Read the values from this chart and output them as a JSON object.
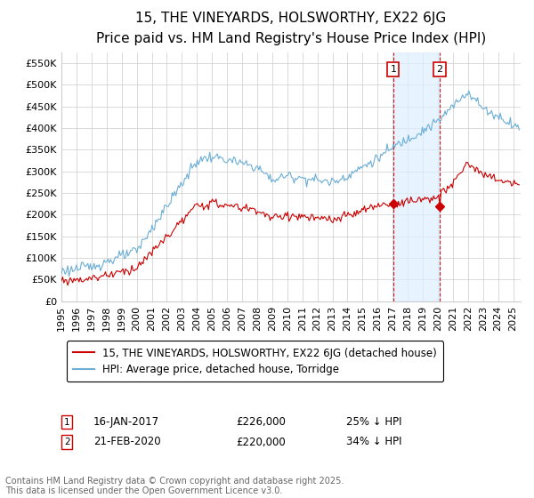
{
  "title": "15, THE VINEYARDS, HOLSWORTHY, EX22 6JG",
  "subtitle": "Price paid vs. HM Land Registry's House Price Index (HPI)",
  "ylim": [
    0,
    575000
  ],
  "yticks": [
    0,
    50000,
    100000,
    150000,
    200000,
    250000,
    300000,
    350000,
    400000,
    450000,
    500000,
    550000
  ],
  "xlim_start": 1995.0,
  "xlim_end": 2025.5,
  "hpi_color": "#6baed6",
  "price_color": "#cc0000",
  "vline_color": "#cc0000",
  "shade_color": "#ddeeff",
  "sale1_date": 2017.04,
  "sale1_price": 226000,
  "sale1_label": "16-JAN-2017",
  "sale1_pct": "25%",
  "sale2_date": 2020.13,
  "sale2_price": 220000,
  "sale2_label": "21-FEB-2020",
  "sale2_pct": "34%",
  "legend_label_price": "15, THE VINEYARDS, HOLSWORTHY, EX22 6JG (detached house)",
  "legend_label_hpi": "HPI: Average price, detached house, Torridge",
  "footnote": "Contains HM Land Registry data © Crown copyright and database right 2025.\nThis data is licensed under the Open Government Licence v3.0.",
  "background_color": "#ffffff",
  "grid_color": "#cccccc",
  "title_fontsize": 11,
  "subtitle_fontsize": 9.5,
  "tick_fontsize": 8,
  "legend_fontsize": 8.5,
  "footnote_fontsize": 7
}
